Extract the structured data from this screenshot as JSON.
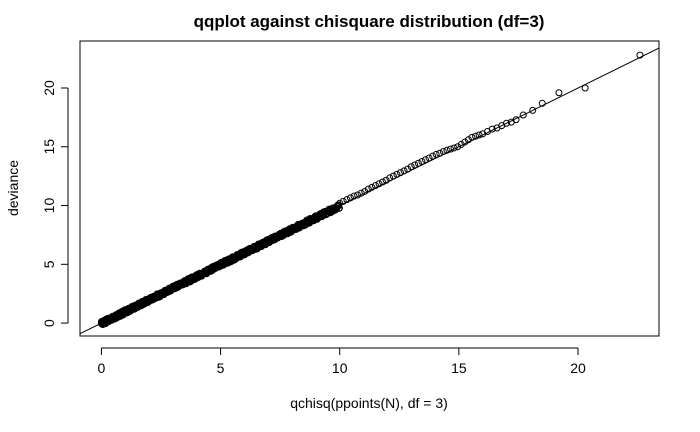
{
  "chart_data": {
    "type": "scatter",
    "title": "qqplot against chisquare distribution (df=3)",
    "xlabel": "qchisq(ppoints(N), df = 3)",
    "ylabel": "deviance",
    "xlim": [
      -0.9,
      23.4
    ],
    "ylim": [
      -1.1,
      24.0
    ],
    "x_ticks": [
      0,
      5,
      10,
      15,
      20
    ],
    "y_ticks": [
      0,
      5,
      10,
      15,
      20
    ],
    "reference_line": {
      "intercept": 0,
      "slope": 1
    },
    "marker": "open-circle",
    "grid": false,
    "points": [
      [
        22.6,
        22.8
      ],
      [
        20.3,
        20.0
      ],
      [
        19.2,
        19.6
      ],
      [
        18.5,
        18.7
      ],
      [
        18.1,
        18.1
      ],
      [
        17.7,
        17.7
      ],
      [
        17.4,
        17.3
      ],
      [
        17.2,
        17.1
      ],
      [
        17.0,
        17.0
      ],
      [
        16.8,
        16.8
      ],
      [
        16.6,
        16.6
      ],
      [
        16.4,
        16.5
      ],
      [
        16.2,
        16.3
      ],
      [
        16.0,
        16.1
      ],
      [
        15.85,
        16.0
      ],
      [
        15.7,
        15.9
      ],
      [
        15.55,
        15.8
      ],
      [
        15.4,
        15.6
      ],
      [
        15.25,
        15.4
      ],
      [
        15.1,
        15.2
      ],
      [
        14.95,
        15.0
      ],
      [
        14.8,
        14.9
      ],
      [
        14.65,
        14.8
      ],
      [
        14.5,
        14.7
      ],
      [
        14.35,
        14.6
      ],
      [
        14.2,
        14.45
      ],
      [
        14.05,
        14.35
      ],
      [
        13.9,
        14.2
      ],
      [
        13.75,
        14.05
      ],
      [
        13.6,
        13.9
      ],
      [
        13.45,
        13.75
      ],
      [
        13.3,
        13.6
      ],
      [
        13.15,
        13.45
      ],
      [
        13.0,
        13.3
      ],
      [
        12.85,
        13.1
      ],
      [
        12.7,
        12.95
      ],
      [
        12.55,
        12.8
      ],
      [
        12.4,
        12.65
      ],
      [
        12.25,
        12.5
      ],
      [
        12.1,
        12.35
      ],
      [
        11.95,
        12.15
      ],
      [
        11.8,
        12.0
      ],
      [
        11.65,
        11.85
      ],
      [
        11.5,
        11.7
      ],
      [
        11.35,
        11.55
      ],
      [
        11.2,
        11.4
      ],
      [
        11.05,
        11.2
      ],
      [
        10.9,
        11.05
      ],
      [
        10.75,
        10.9
      ],
      [
        10.6,
        10.8
      ],
      [
        10.45,
        10.65
      ],
      [
        10.3,
        10.5
      ],
      [
        10.15,
        10.35
      ],
      [
        10.0,
        10.2
      ]
    ]
  }
}
